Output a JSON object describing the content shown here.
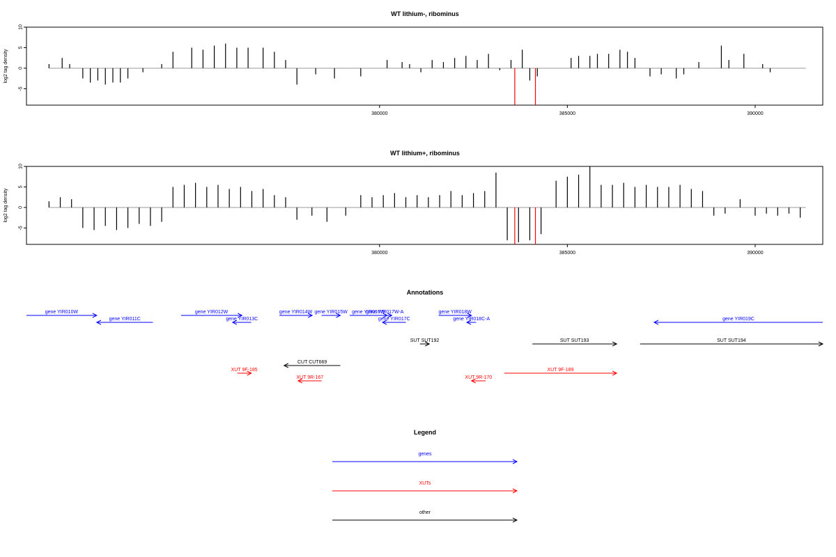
{
  "chart_data": [
    {
      "type": "bar",
      "title": "WT lithium-, ribominus",
      "xlabel": "",
      "ylabel": "log2 tag density",
      "xlim": [
        370600,
        391800
      ],
      "ylim": [
        -9,
        10
      ],
      "x_ticks": [
        380000,
        385000,
        390000
      ],
      "x_tick_labels": [
        "380000",
        "385000",
        "390000"
      ],
      "y_ticks": [
        10,
        5,
        0,
        -5
      ],
      "y_tick_labels": [
        "10",
        "5",
        "0",
        "-5"
      ],
      "baseline_x": [
        371200,
        391350
      ],
      "highlight_color": "#ff0000",
      "bar_color": "#000000",
      "series": [
        {
          "values": [
            [
              371200,
              1
            ],
            [
              371550,
              2.5
            ],
            [
              371750,
              1
            ],
            [
              372100,
              -2.5
            ],
            [
              372300,
              -3.5
            ],
            [
              372500,
              -3
            ],
            [
              372700,
              -4
            ],
            [
              372900,
              -3.5
            ],
            [
              373100,
              -3.5
            ],
            [
              373300,
              -2.5
            ],
            [
              373700,
              -1
            ],
            [
              374200,
              1
            ],
            [
              374500,
              4
            ],
            [
              375000,
              5
            ],
            [
              375300,
              4.5
            ],
            [
              375600,
              5.5
            ],
            [
              375900,
              6
            ],
            [
              376200,
              5
            ],
            [
              376500,
              5
            ],
            [
              376900,
              5
            ],
            [
              377200,
              4
            ],
            [
              377500,
              2
            ],
            [
              377800,
              -4
            ],
            [
              378300,
              -1.5
            ],
            [
              378800,
              -2.5
            ],
            [
              379500,
              -2
            ],
            [
              380200,
              2
            ],
            [
              380600,
              1.5
            ],
            [
              380800,
              1
            ],
            [
              381100,
              -1
            ],
            [
              381400,
              2
            ],
            [
              381700,
              1.5
            ],
            [
              382000,
              2.5
            ],
            [
              382300,
              3
            ],
            [
              382600,
              2
            ],
            [
              382900,
              3.5
            ],
            [
              383200,
              -0.5
            ],
            [
              383500,
              2
            ],
            [
              383800,
              4.5
            ],
            [
              384000,
              -3
            ],
            [
              384200,
              -2
            ],
            [
              385100,
              2.5
            ],
            [
              385300,
              3
            ],
            [
              385600,
              3
            ],
            [
              385800,
              3.5
            ],
            [
              386100,
              3.5
            ],
            [
              386400,
              4.5
            ],
            [
              386600,
              4
            ],
            [
              386800,
              2.5
            ],
            [
              387200,
              -2
            ],
            [
              387500,
              -1.5
            ],
            [
              387900,
              -2.5
            ],
            [
              388100,
              -1.5
            ],
            [
              388500,
              1.5
            ],
            [
              389100,
              5.5
            ],
            [
              389300,
              2
            ],
            [
              389700,
              3.5
            ],
            [
              390200,
              1
            ],
            [
              390400,
              -1
            ]
          ]
        },
        {
          "name": "",
          "values": [
            [
              383600,
              -9
            ],
            [
              384150,
              -9
            ]
          ],
          "highlight": true
        }
      ]
    },
    {
      "type": "bar",
      "title": "WT lithium+, ribominus",
      "xlabel": "",
      "ylabel": "log2 tag density",
      "xlim": [
        370600,
        391800
      ],
      "ylim": [
        -9,
        10
      ],
      "x_ticks": [
        380000,
        385000,
        390000
      ],
      "x_tick_labels": [
        "380000",
        "385000",
        "390000"
      ],
      "y_ticks": [
        10,
        5,
        0,
        -5
      ],
      "y_tick_labels": [
        "10",
        "5",
        "0",
        "-5"
      ],
      "baseline_x": [
        371200,
        391350
      ],
      "highlight_color": "#ff0000",
      "bar_color": "#000000",
      "series": [
        {
          "values": [
            [
              371200,
              1.5
            ],
            [
              371500,
              2.5
            ],
            [
              371800,
              2
            ],
            [
              372100,
              -5
            ],
            [
              372400,
              -5.5
            ],
            [
              372700,
              -4.5
            ],
            [
              373000,
              -5.5
            ],
            [
              373300,
              -5
            ],
            [
              373600,
              -4
            ],
            [
              373900,
              -4.5
            ],
            [
              374200,
              -3.5
            ],
            [
              374500,
              5
            ],
            [
              374800,
              5.5
            ],
            [
              375100,
              6
            ],
            [
              375400,
              5
            ],
            [
              375700,
              5.5
            ],
            [
              376000,
              4.5
            ],
            [
              376300,
              5
            ],
            [
              376600,
              4
            ],
            [
              376900,
              4.5
            ],
            [
              377200,
              3
            ],
            [
              377500,
              2.5
            ],
            [
              377800,
              -3
            ],
            [
              378200,
              -2
            ],
            [
              378600,
              -3.5
            ],
            [
              379100,
              -2
            ],
            [
              379500,
              3
            ],
            [
              379800,
              2.5
            ],
            [
              380100,
              3
            ],
            [
              380400,
              3.5
            ],
            [
              380700,
              2.5
            ],
            [
              381000,
              3
            ],
            [
              381300,
              2.5
            ],
            [
              381600,
              3
            ],
            [
              381900,
              4
            ],
            [
              382200,
              3
            ],
            [
              382500,
              3.5
            ],
            [
              382800,
              4
            ],
            [
              383100,
              8.5
            ],
            [
              383400,
              -8
            ],
            [
              383700,
              -8.5
            ],
            [
              384000,
              -8
            ],
            [
              384300,
              -6.5
            ],
            [
              384700,
              6.5
            ],
            [
              385000,
              7.5
            ],
            [
              385300,
              8
            ],
            [
              385600,
              10
            ],
            [
              385900,
              5.5
            ],
            [
              386200,
              5.5
            ],
            [
              386500,
              6
            ],
            [
              386800,
              5
            ],
            [
              387100,
              5.5
            ],
            [
              387400,
              5
            ],
            [
              387700,
              5
            ],
            [
              388000,
              5.5
            ],
            [
              388300,
              4.5
            ],
            [
              388600,
              4
            ],
            [
              388900,
              -2
            ],
            [
              389200,
              -1.5
            ],
            [
              389600,
              2
            ],
            [
              390000,
              -2
            ],
            [
              390300,
              -1.5
            ],
            [
              390600,
              -2
            ],
            [
              390900,
              -1.5
            ],
            [
              391200,
              -2.5
            ]
          ]
        },
        {
          "name": "",
          "values": [
            [
              383600,
              -9
            ],
            [
              384150,
              -9
            ]
          ],
          "highlight": true
        }
      ]
    },
    {
      "type": "other",
      "title": "Annotations",
      "features": [
        {
          "label": "gene YIR010W",
          "start": 370600,
          "end": 372100,
          "dir": "+",
          "row": 1,
          "color": "#0000ff"
        },
        {
          "label": "gene YIR011C",
          "start": 372100,
          "end": 373300,
          "dir": "-",
          "row": 2,
          "color": "#0000ff"
        },
        {
          "label": "gene YIR012W",
          "start": 373900,
          "end": 375200,
          "dir": "+",
          "row": 1,
          "color": "#0000ff"
        },
        {
          "label": "gene YIR013C",
          "start": 375000,
          "end": 375400,
          "dir": "-",
          "row": 2,
          "color": "#0000ff"
        },
        {
          "label": "gene YIR014W",
          "start": 376000,
          "end": 376700,
          "dir": "+",
          "row": 1,
          "color": "#0000ff"
        },
        {
          "label": "gene YIR015W",
          "start": 376900,
          "end": 377300,
          "dir": "+",
          "row": 1,
          "color": "#0000ff"
        },
        {
          "label": "gene YIR016W",
          "start": 377500,
          "end": 378300,
          "dir": "+",
          "row": 1,
          "color": "#0000ff"
        },
        {
          "label": "gene YIR017W-A",
          "start": 378100,
          "end": 378400,
          "dir": "+",
          "row": 1,
          "color": "#0000ff"
        },
        {
          "label": "gene YIR017C",
          "start": 378200,
          "end": 378700,
          "dir": "-",
          "row": 2,
          "color": "#0000ff"
        },
        {
          "label": "gene YIR018W",
          "start": 379400,
          "end": 380100,
          "dir": "+",
          "row": 1,
          "color": "#0000ff"
        },
        {
          "label": "gene YIR018C-A",
          "start": 380000,
          "end": 380200,
          "dir": "-",
          "row": 2,
          "color": "#0000ff"
        },
        {
          "label": "gene YIR019C",
          "start": 384000,
          "end": 387600,
          "dir": "-",
          "row": 2,
          "color": "#0000ff"
        },
        {
          "label": "SUT SUT192",
          "start": 379000,
          "end": 379200,
          "dir": "+",
          "row": 3,
          "color": "#000000"
        },
        {
          "label": "SUT SUT193",
          "start": 381400,
          "end": 383200,
          "dir": "+",
          "row": 3,
          "color": "#000000"
        },
        {
          "label": "SUT SUT194",
          "start": 383700,
          "end": 387600,
          "dir": "+",
          "row": 3,
          "color": "#000000"
        },
        {
          "label": "CUT CUT669",
          "start": 376100,
          "end": 377300,
          "dir": "-",
          "row": 4,
          "color": "#000000"
        },
        {
          "label": "XUT 9F-185",
          "start": 375100,
          "end": 375400,
          "dir": "+",
          "row": 5,
          "color": "#ff0000"
        },
        {
          "label": "XUT 9R-167",
          "start": 376400,
          "end": 376900,
          "dir": "-",
          "row": 6,
          "color": "#ff0000"
        },
        {
          "label": "XUT 9R-170",
          "start": 380100,
          "end": 380400,
          "dir": "-",
          "row": 6,
          "color": "#ff0000"
        },
        {
          "label": "XUT 9F-189",
          "start": 380800,
          "end": 383200,
          "dir": "+",
          "row": 5,
          "color": "#ff0000"
        }
      ]
    }
  ],
  "legend": {
    "title": "Legend",
    "items": [
      {
        "label": "genes",
        "color": "#0000ff"
      },
      {
        "label": "XUTs",
        "color": "#ff0000"
      },
      {
        "label": "other",
        "color": "#000000"
      }
    ]
  }
}
